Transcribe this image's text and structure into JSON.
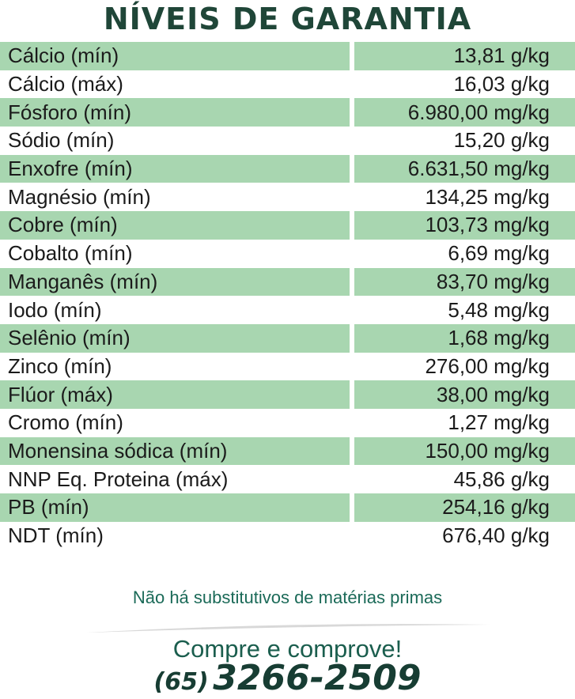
{
  "header": {
    "title": "NÍVEIS DE GARANTIA"
  },
  "table": {
    "rows": [
      [
        "Cálcio (mín)",
        "13,81 g/kg"
      ],
      [
        "Cálcio (máx)",
        "16,03 g/kg"
      ],
      [
        "Fósforo (mín)",
        "6.980,00 mg/kg"
      ],
      [
        "Sódio (mín)",
        "15,20 g/kg"
      ],
      [
        "Enxofre (mín)",
        "6.631,50 mg/kg"
      ],
      [
        "Magnésio (mín)",
        "134,25 mg/kg"
      ],
      [
        "Cobre (mín)",
        "103,73 mg/kg"
      ],
      [
        "Cobalto (mín)",
        "6,69 mg/kg"
      ],
      [
        "Manganês (mín)",
        "83,70 mg/kg"
      ],
      [
        "Iodo (mín)",
        "5,48 mg/kg"
      ],
      [
        "Selênio (mín)",
        "1,68 mg/kg"
      ],
      [
        "Zinco (mín)",
        "276,00 mg/kg"
      ],
      [
        "Flúor (máx)",
        "38,00 mg/kg"
      ],
      [
        "Cromo (mín)",
        "1,27 mg/kg"
      ],
      [
        "Monensina sódica (mín)",
        "150,00 mg/kg"
      ],
      [
        "NNP Eq. Proteina (máx)",
        "45,86 g/kg"
      ],
      [
        "PB (mín)",
        "254,16 g/kg"
      ],
      [
        "NDT (mín)",
        "676,40 g/kg"
      ]
    ]
  },
  "footer": {
    "note": "Não há substitutivos de matérias primas",
    "slogan": "Compre e comprove!",
    "phone": {
      "area": "(65)",
      "number": "3266-2509"
    }
  }
}
